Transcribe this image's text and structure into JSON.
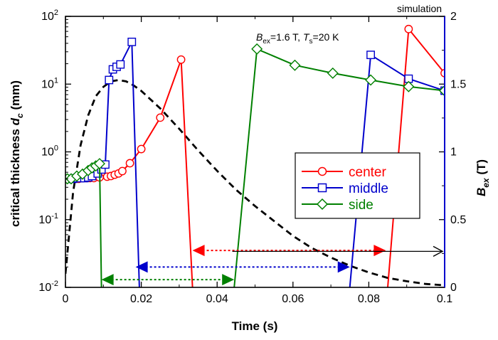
{
  "chart_data": {
    "type": "line",
    "xlabel": "Time (s)",
    "ylabel": "critical thickness d_c (mm)",
    "y2label": "B_ex (T)",
    "xlim": [
      0,
      0.1
    ],
    "ylim": [
      0.01,
      100
    ],
    "y2lim": [
      0,
      2
    ],
    "y_scale": "log",
    "x_ticks": [
      "0",
      "0.02",
      "0.04",
      "0.06",
      "0.08",
      "0.1"
    ],
    "x_tick_values": [
      0,
      0.02,
      0.04,
      0.06,
      0.08,
      0.1
    ],
    "y2_ticks": [
      "0",
      "0.5",
      "1",
      "1.5",
      "2"
    ],
    "y2_tick_values": [
      0,
      0.5,
      1,
      1.5,
      2
    ],
    "corner_label": "simulation",
    "annotation": "B_ex=1.6 T, T_s=20 K",
    "annotation_parts": {
      "b": "B",
      "b_sub": "ex",
      "b_val": "=1.6 T, ",
      "t": "T",
      "t_sub": "s",
      "t_val": "=20 K"
    },
    "legend": {
      "position": "center-right",
      "entries": [
        {
          "name": "center",
          "color": "#ff0000",
          "marker": "circle"
        },
        {
          "name": "middle",
          "color": "#0000cc",
          "marker": "square"
        },
        {
          "name": "side",
          "color": "#008000",
          "marker": "diamond"
        }
      ]
    },
    "series": [
      {
        "name": "center",
        "color": "#ff0000",
        "marker": "circle",
        "axis": "left",
        "points": [
          [
            0.0005,
            0.4
          ],
          [
            0.0015,
            0.4
          ],
          [
            0.0025,
            0.4
          ],
          [
            0.0035,
            0.4
          ],
          [
            0.0045,
            0.41
          ],
          [
            0.0055,
            0.41
          ],
          [
            0.0065,
            0.41
          ],
          [
            0.0075,
            0.41
          ],
          [
            0.009,
            0.42
          ],
          [
            0.011,
            0.43
          ],
          [
            0.012,
            0.44
          ],
          [
            0.013,
            0.46
          ],
          [
            0.014,
            0.48
          ],
          [
            0.015,
            0.52
          ],
          [
            0.017,
            0.68
          ],
          [
            0.02,
            1.1
          ],
          [
            0.025,
            3.2
          ],
          [
            0.0305,
            23
          ],
          [
            0.0335,
            0.01
          ]
        ],
        "segment2": [
          [
            0.085,
            0.01
          ],
          [
            0.0905,
            65
          ],
          [
            0.1,
            14.5
          ]
        ]
      },
      {
        "name": "middle",
        "color": "#0000cc",
        "marker": "square",
        "axis": "left",
        "points": [
          [
            0.0005,
            0.4
          ],
          [
            0.002,
            0.4
          ],
          [
            0.003,
            0.41
          ],
          [
            0.004,
            0.41
          ],
          [
            0.005,
            0.41
          ],
          [
            0.006,
            0.42
          ],
          [
            0.007,
            0.44
          ],
          [
            0.0085,
            0.48
          ],
          [
            0.0095,
            0.55
          ],
          [
            0.0105,
            0.65
          ],
          [
            0.0115,
            11.5
          ],
          [
            0.0125,
            16.5
          ],
          [
            0.0135,
            18
          ],
          [
            0.0145,
            19.5
          ],
          [
            0.0175,
            42
          ],
          [
            0.0195,
            0.01
          ]
        ],
        "segment2": [
          [
            0.075,
            0.01
          ],
          [
            0.0805,
            27
          ],
          [
            0.0905,
            12
          ],
          [
            0.1,
            8
          ]
        ]
      },
      {
        "name": "side",
        "color": "#008000",
        "marker": "diamond",
        "axis": "left",
        "points": [
          [
            0.0005,
            0.4
          ],
          [
            0.0015,
            0.4
          ],
          [
            0.003,
            0.44
          ],
          [
            0.0045,
            0.47
          ],
          [
            0.006,
            0.53
          ],
          [
            0.007,
            0.58
          ],
          [
            0.008,
            0.62
          ],
          [
            0.009,
            0.67
          ],
          [
            0.0095,
            0.01
          ]
        ],
        "segment2": [
          [
            0.0445,
            0.01
          ],
          [
            0.0505,
            33
          ],
          [
            0.0605,
            19
          ],
          [
            0.0705,
            14.5
          ],
          [
            0.0805,
            11.5
          ],
          [
            0.0905,
            9.2
          ],
          [
            0.1,
            8
          ]
        ]
      },
      {
        "name": "B_ex",
        "color": "#000000",
        "style": "dashed",
        "axis": "right",
        "x": [
          0,
          0.002,
          0.004,
          0.006,
          0.008,
          0.01,
          0.012,
          0.014,
          0.016,
          0.018,
          0.02,
          0.025,
          0.03,
          0.035,
          0.04,
          0.045,
          0.05,
          0.055,
          0.06,
          0.065,
          0.07,
          0.075,
          0.08,
          0.085,
          0.09,
          0.095,
          0.1
        ],
        "y": [
          0.1,
          0.7,
          1.05,
          1.27,
          1.41,
          1.48,
          1.52,
          1.53,
          1.52,
          1.49,
          1.45,
          1.32,
          1.17,
          1.01,
          0.86,
          0.72,
          0.6,
          0.49,
          0.38,
          0.29,
          0.22,
          0.16,
          0.11,
          0.07,
          0.045,
          0.025,
          0.015
        ]
      }
    ],
    "period_arrows": [
      {
        "color": "#ff0000",
        "style": "dotted",
        "from": 0.0335,
        "to": 0.0845,
        "y_level": 0.035
      },
      {
        "color": "#0000cc",
        "style": "dotted",
        "from": 0.0185,
        "to": 0.075,
        "y_level": 0.02
      },
      {
        "color": "#008000",
        "style": "dotted",
        "from": 0.0095,
        "to": 0.0445,
        "y_level": 0.013
      }
    ],
    "right_axis_arrow": {
      "color": "#000000",
      "from": 0.044,
      "to": 0.1,
      "y_level": 0.034
    }
  }
}
